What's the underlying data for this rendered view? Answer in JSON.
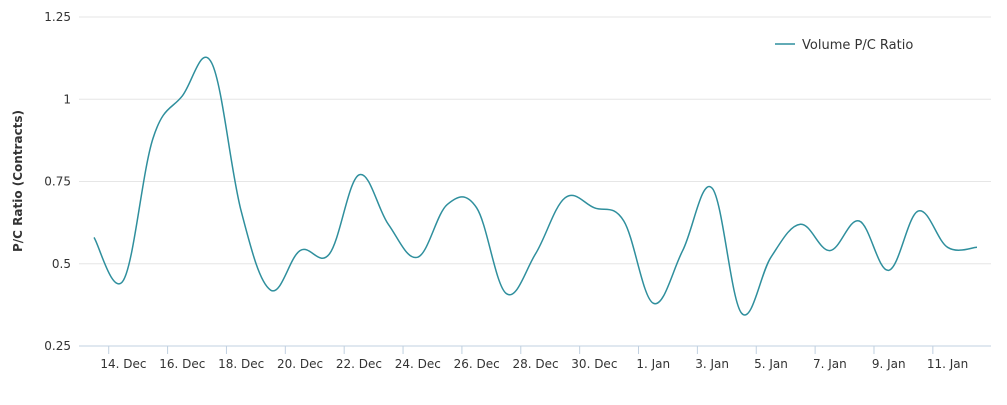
{
  "chart_data": {
    "type": "line",
    "y_label": "P/C Ratio (Contracts)",
    "categories": [
      null,
      "14. Dec",
      null,
      "16. Dec",
      null,
      "18. Dec",
      null,
      "20. Dec",
      null,
      "22. Dec",
      null,
      "24. Dec",
      null,
      "26. Dec",
      null,
      "28. Dec",
      null,
      "30. Dec",
      null,
      "1. Jan",
      null,
      "3. Jan",
      null,
      "5. Jan",
      null,
      "7. Jan",
      null,
      "9. Jan",
      null,
      "11. Jan",
      null
    ],
    "series": [
      {
        "name": "Volume P/C Ratio",
        "color": "#2f8f9d",
        "values": [
          0.58,
          0.45,
          0.88,
          1.01,
          1.11,
          0.66,
          0.42,
          0.54,
          0.53,
          0.77,
          0.62,
          0.52,
          0.68,
          0.67,
          0.41,
          0.53,
          0.7,
          0.67,
          0.63,
          0.38,
          0.54,
          0.73,
          0.35,
          0.52,
          0.62,
          0.54,
          0.63,
          0.48,
          0.66,
          0.55,
          0.55
        ]
      }
    ],
    "ylim": [
      0.25,
      1.25
    ],
    "yticks": [
      0.25,
      0.5,
      0.75,
      1,
      1.25
    ],
    "grid": true,
    "legend": "top-right"
  }
}
